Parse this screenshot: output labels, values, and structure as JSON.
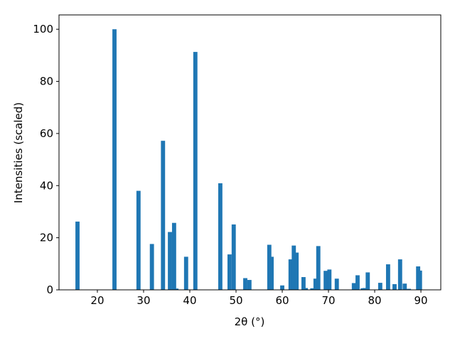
{
  "chart_data": {
    "type": "bar",
    "xlabel": "2θ (°)",
    "ylabel": "Intensities (scaled)",
    "color": "#1f77b4",
    "x": [
      15.7,
      23.7,
      28.9,
      31.8,
      34.2,
      35.7,
      36.6,
      37.1,
      39.2,
      41.2,
      46.6,
      48.6,
      49.5,
      52.0,
      52.9,
      57.2,
      57.7,
      60.0,
      61.8,
      62.5,
      63.1,
      64.6,
      65.1,
      66.5,
      67.2,
      67.8,
      69.4,
      70.2,
      71.8,
      75.5,
      76.3,
      77.4,
      77.8,
      78.5,
      81.2,
      82.9,
      84.3,
      85.5,
      86.5,
      87.4,
      89.4,
      89.8
    ],
    "values": [
      26.2,
      100,
      38,
      17.6,
      57.2,
      22.2,
      25.7,
      0.5,
      12.7,
      91.3,
      40.9,
      13.6,
      25.1,
      4.5,
      3.8,
      17.3,
      12.7,
      1.7,
      11.7,
      17,
      14.3,
      4.9,
      0.7,
      0.6,
      4.3,
      16.8,
      7.3,
      7.8,
      4.3,
      2.6,
      5.6,
      0.6,
      0.7,
      6.7,
      2.7,
      9.8,
      2.2,
      11.7,
      2.4,
      0.4,
      9,
      7.4
    ],
    "xlim": [
      11.7,
      94.3
    ],
    "ylim": [
      0,
      105.5
    ],
    "xticks": [
      20,
      30,
      40,
      50,
      60,
      70,
      80,
      90
    ],
    "yticks": [
      0,
      20,
      40,
      60,
      80,
      100
    ]
  }
}
